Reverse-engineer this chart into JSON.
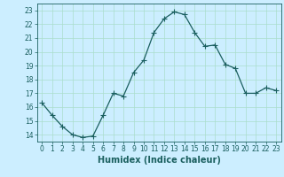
{
  "x": [
    0,
    1,
    2,
    3,
    4,
    5,
    6,
    7,
    8,
    9,
    10,
    11,
    12,
    13,
    14,
    15,
    16,
    17,
    18,
    19,
    20,
    21,
    22,
    23
  ],
  "y": [
    16.3,
    15.4,
    14.6,
    14.0,
    13.8,
    13.9,
    15.4,
    17.0,
    16.8,
    18.5,
    19.4,
    21.4,
    22.4,
    22.9,
    22.7,
    21.4,
    20.4,
    20.5,
    19.1,
    18.8,
    17.0,
    17.0,
    17.4,
    17.2
  ],
  "line_color": "#1a5f5f",
  "marker": "+",
  "marker_size": 4,
  "bg_color": "#cceeff",
  "grid_color": "#aaddcc",
  "xlabel": "Humidex (Indice chaleur)",
  "xlim": [
    -0.5,
    23.5
  ],
  "ylim": [
    13.5,
    23.5
  ],
  "yticks": [
    14,
    15,
    16,
    17,
    18,
    19,
    20,
    21,
    22,
    23
  ],
  "xticks": [
    0,
    1,
    2,
    3,
    4,
    5,
    6,
    7,
    8,
    9,
    10,
    11,
    12,
    13,
    14,
    15,
    16,
    17,
    18,
    19,
    20,
    21,
    22,
    23
  ],
  "tick_color": "#1a5f5f",
  "tick_fontsize": 5.5,
  "xlabel_fontsize": 7.0,
  "linewidth": 0.9,
  "marker_linewidth": 0.8
}
